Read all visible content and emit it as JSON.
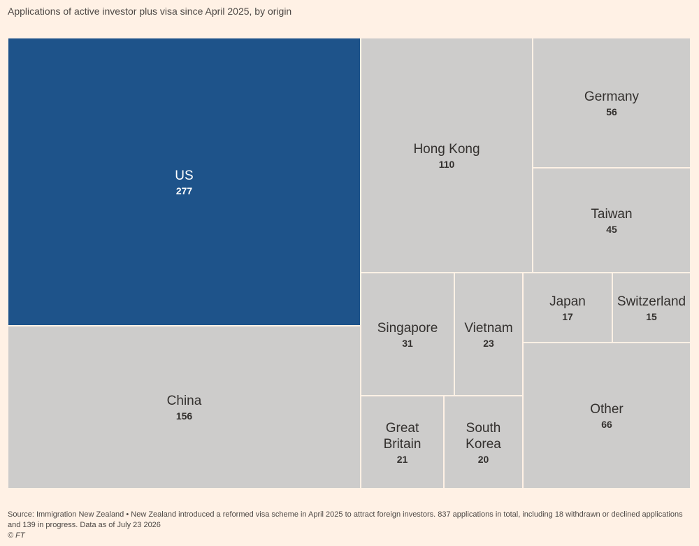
{
  "title": "Applications of active investor plus visa since April 2025, by origin",
  "footnote": "Source: Immigration New Zealand • New Zealand introduced a reformed visa scheme in April 2025 to attract foreign investors. 837 applications in total, including 18 withdrawn or declined applications and 139 in progress. Data as of July 23 2026",
  "credit": "© FT",
  "colors": {
    "highlight": "#1e538a",
    "default": "#cdcccb",
    "background": "#fff1e5"
  },
  "chart_data": {
    "type": "treemap",
    "title": "Applications of active investor plus visa since April 2025, by origin",
    "items": [
      {
        "label": "US",
        "value": 277,
        "highlight": true
      },
      {
        "label": "China",
        "value": 156
      },
      {
        "label": "Hong Kong",
        "value": 110
      },
      {
        "label": "Germany",
        "value": 56
      },
      {
        "label": "Taiwan",
        "value": 45
      },
      {
        "label": "Singapore",
        "value": 31
      },
      {
        "label": "Vietnam",
        "value": 23
      },
      {
        "label": "Japan",
        "value": 17
      },
      {
        "label": "Switzerland",
        "value": 15
      },
      {
        "label": "Other",
        "value": 66
      },
      {
        "label": "Great Britain",
        "value": 21
      },
      {
        "label": "South Korea",
        "value": 20
      }
    ]
  }
}
